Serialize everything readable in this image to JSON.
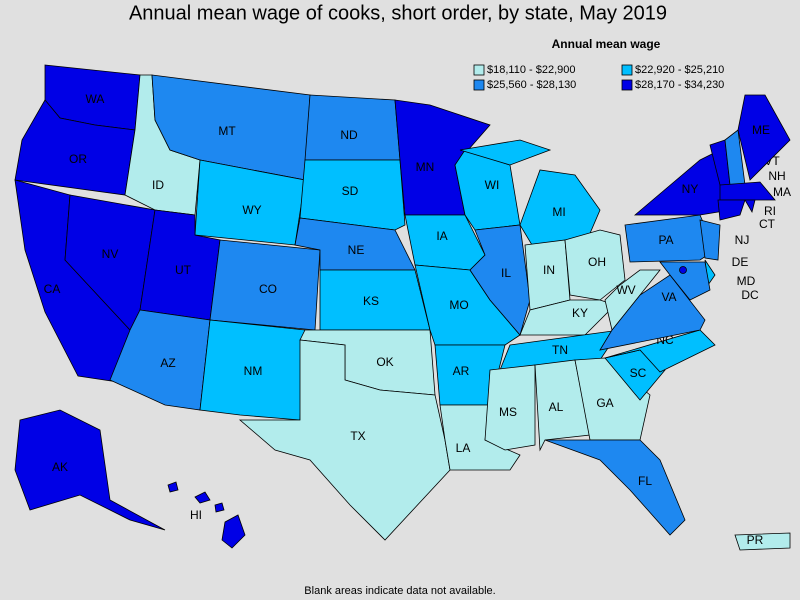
{
  "title": "Annual mean wage of cooks, short order, by state, May 2019",
  "legend": {
    "title": "Annual mean wage",
    "items": [
      {
        "label": "$18,110 - $22,900",
        "color": "#b2ecec"
      },
      {
        "label": "$22,920 - $25,210",
        "color": "#00bfff"
      },
      {
        "label": "$25,560 - $28,130",
        "color": "#1e88f0"
      },
      {
        "label": "$28,170 - $34,230",
        "color": "#0000e6"
      }
    ]
  },
  "states": [
    {
      "label": "WA",
      "bin": 3
    },
    {
      "label": "OR",
      "bin": 3
    },
    {
      "label": "CA",
      "bin": 3
    },
    {
      "label": "NV",
      "bin": 3
    },
    {
      "label": "ID",
      "bin": 0
    },
    {
      "label": "MT",
      "bin": 2
    },
    {
      "label": "WY",
      "bin": 1
    },
    {
      "label": "UT",
      "bin": 3
    },
    {
      "label": "CO",
      "bin": 2
    },
    {
      "label": "AZ",
      "bin": 2
    },
    {
      "label": "NM",
      "bin": 1
    },
    {
      "label": "ND",
      "bin": 2
    },
    {
      "label": "SD",
      "bin": 1
    },
    {
      "label": "NE",
      "bin": 2
    },
    {
      "label": "KS",
      "bin": 1
    },
    {
      "label": "OK",
      "bin": 0
    },
    {
      "label": "TX",
      "bin": 0
    },
    {
      "label": "MN",
      "bin": 3
    },
    {
      "label": "IA",
      "bin": 1
    },
    {
      "label": "MO",
      "bin": 1
    },
    {
      "label": "AR",
      "bin": 1
    },
    {
      "label": "LA",
      "bin": 0
    },
    {
      "label": "WI",
      "bin": 1
    },
    {
      "label": "IL",
      "bin": 2
    },
    {
      "label": "MI",
      "bin": 1
    },
    {
      "label": "IN",
      "bin": 0
    },
    {
      "label": "OH",
      "bin": 0
    },
    {
      "label": "KY",
      "bin": 0
    },
    {
      "label": "TN",
      "bin": 1
    },
    {
      "label": "MS",
      "bin": 0
    },
    {
      "label": "AL",
      "bin": 0
    },
    {
      "label": "GA",
      "bin": 0
    },
    {
      "label": "FL",
      "bin": 2
    },
    {
      "label": "SC",
      "bin": 1
    },
    {
      "label": "NC",
      "bin": 1
    },
    {
      "label": "VA",
      "bin": 2
    },
    {
      "label": "WV",
      "bin": 0
    },
    {
      "label": "PA",
      "bin": 2
    },
    {
      "label": "NY",
      "bin": 3
    },
    {
      "label": "NJ",
      "bin": 2
    },
    {
      "label": "DE",
      "bin": 1
    },
    {
      "label": "MD",
      "bin": 2
    },
    {
      "label": "VT",
      "bin": 3
    },
    {
      "label": "NH",
      "bin": 2
    },
    {
      "label": "ME",
      "bin": 3
    },
    {
      "label": "MA",
      "bin": 3
    },
    {
      "label": "CT",
      "bin": 3
    },
    {
      "label": "RI",
      "bin": 3
    },
    {
      "label": "DC",
      "bin": 3
    },
    {
      "label": "AK",
      "bin": 3
    },
    {
      "label": "HI",
      "bin": 3
    },
    {
      "label": "PR",
      "bin": 0
    }
  ],
  "footnote": "Blank areas indicate data not available."
}
